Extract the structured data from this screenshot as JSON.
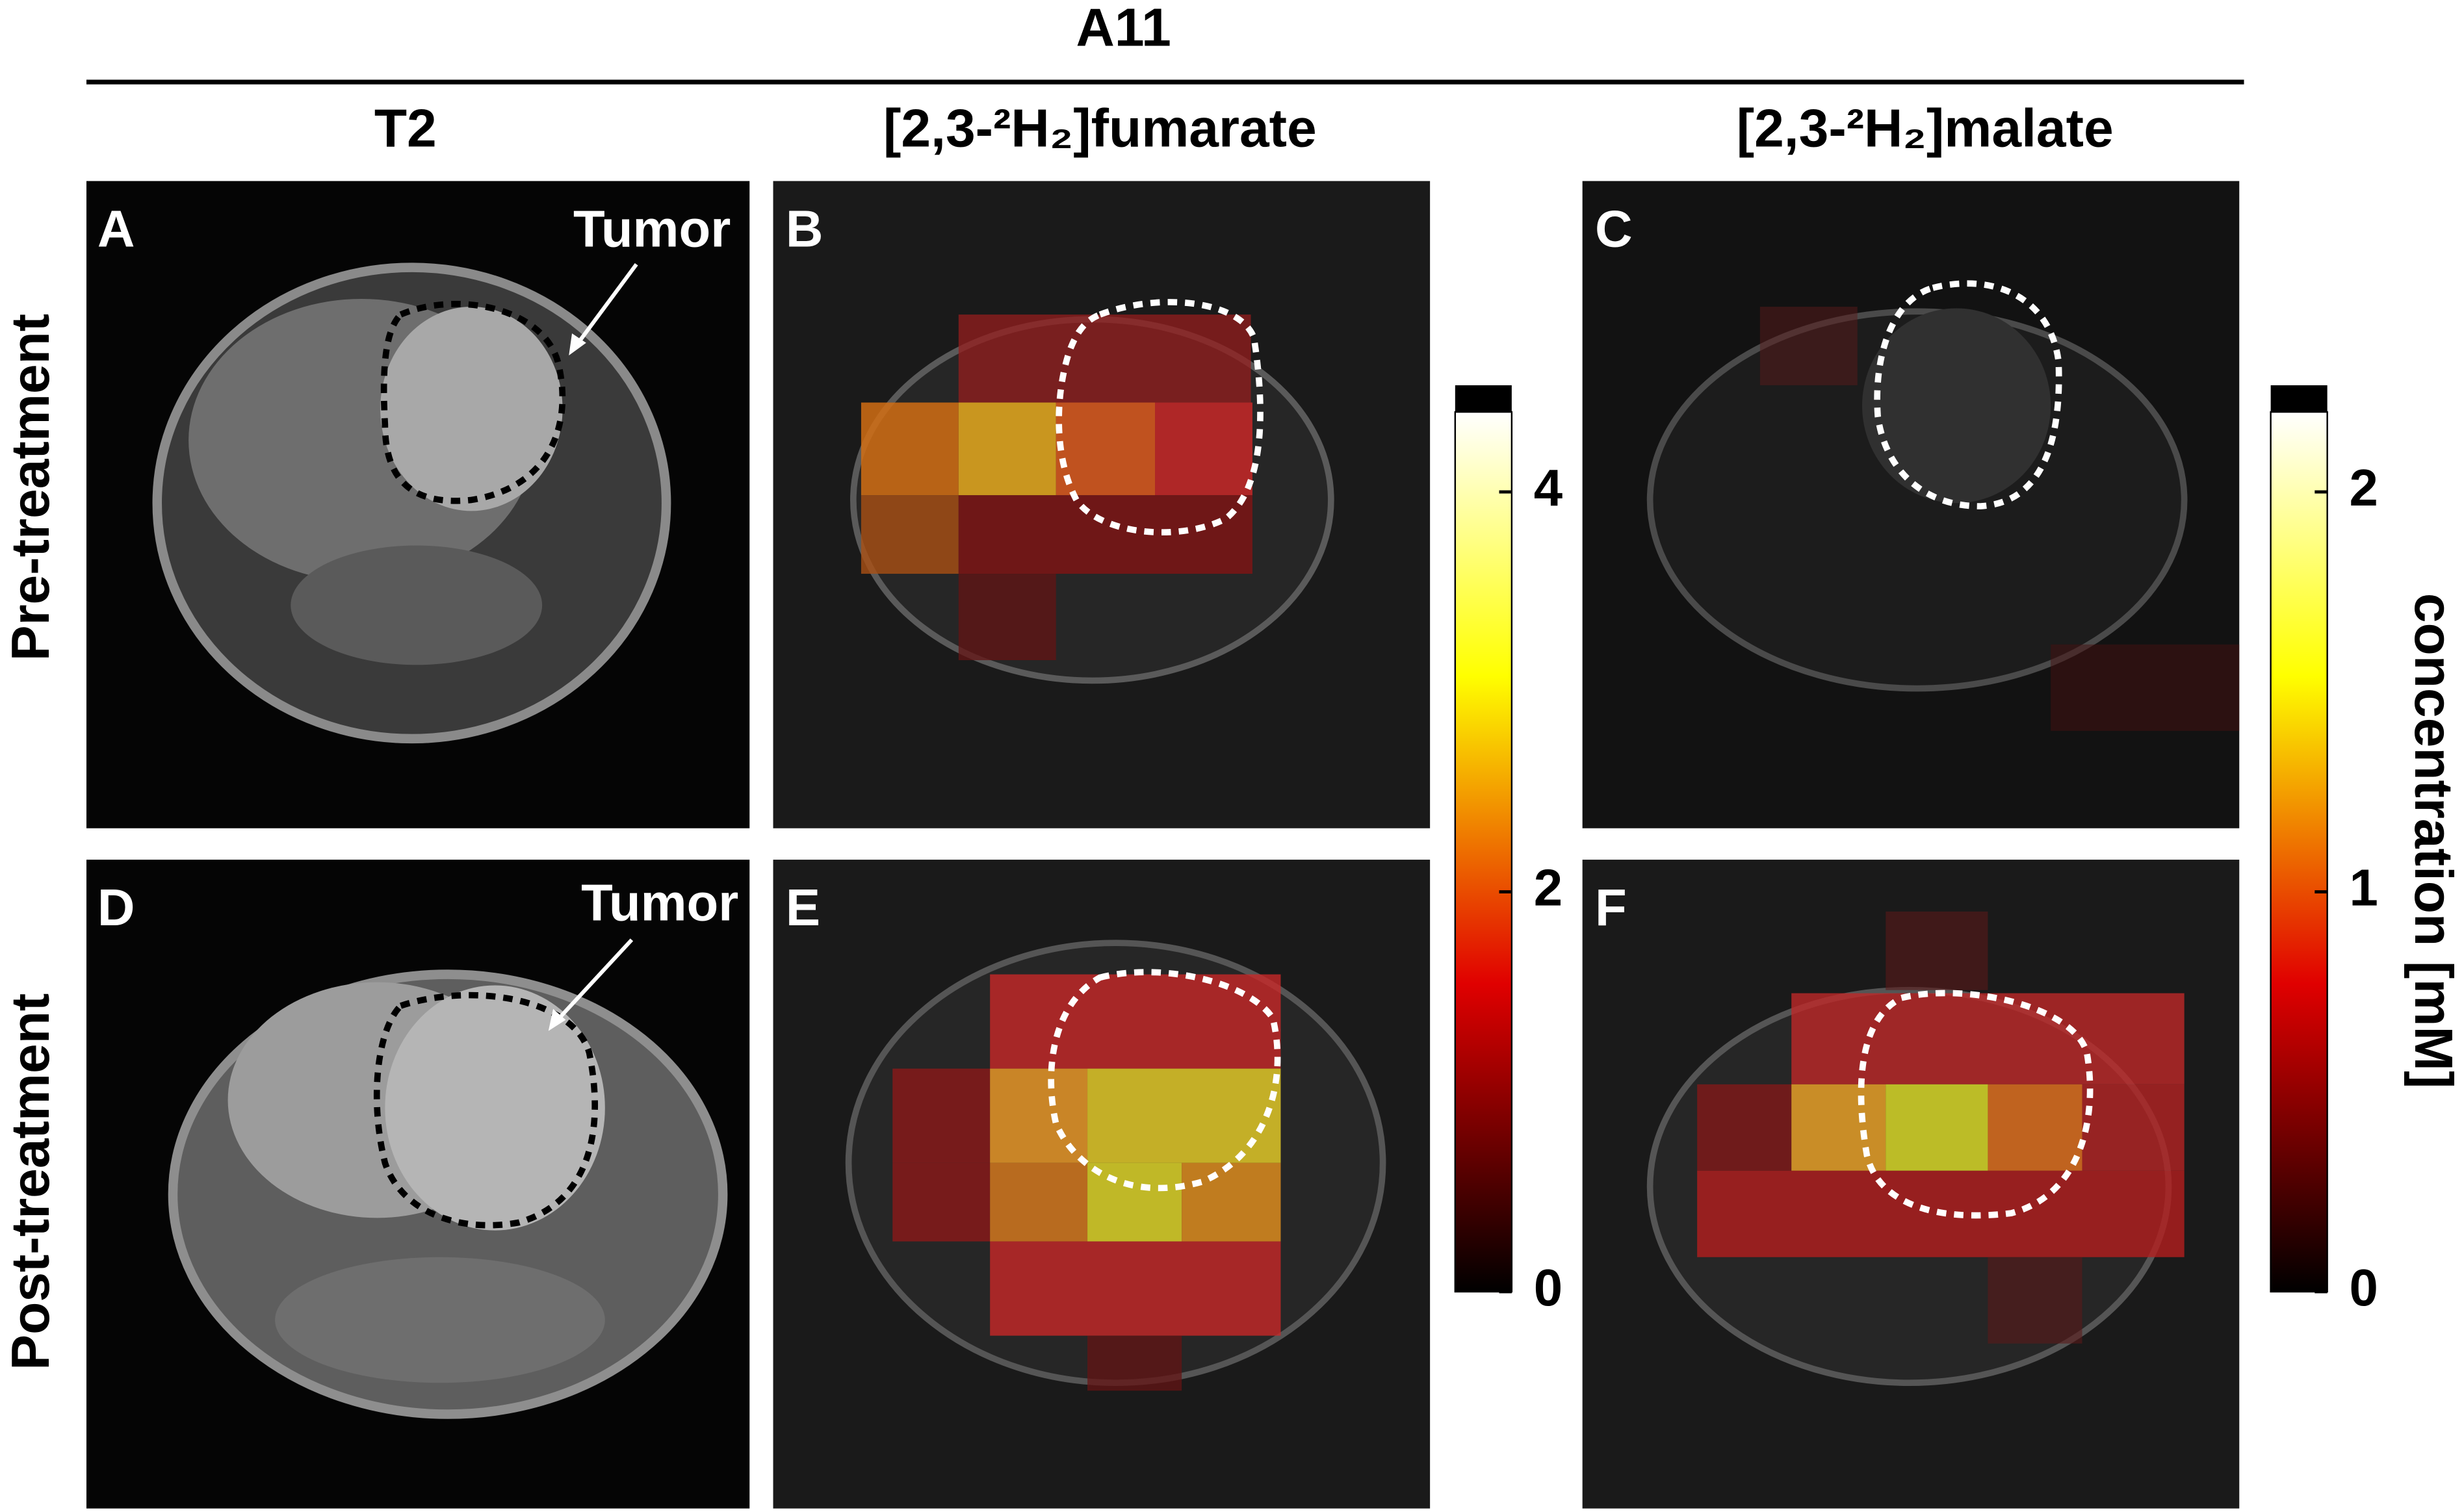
{
  "figure": {
    "title": "A11",
    "columns": [
      "T2",
      "[2,3-²H₂]fumarate",
      "[2,3-²H₂]malate"
    ],
    "rows": [
      "Pre-treatment",
      "Post-treatment"
    ],
    "panels": [
      {
        "label": "A",
        "annotation": "Tumor"
      },
      {
        "label": "B"
      },
      {
        "label": "C"
      },
      {
        "label": "D",
        "annotation": "Tumor"
      },
      {
        "label": "E"
      },
      {
        "label": "F"
      }
    ],
    "colorbars": [
      {
        "lim": [
          0,
          4.4
        ],
        "ticks": [
          0,
          2,
          4
        ]
      },
      {
        "lim": [
          0,
          2.2
        ],
        "ticks": [
          0,
          1,
          2
        ]
      }
    ],
    "colorbar_label": "concentration [mM]"
  }
}
